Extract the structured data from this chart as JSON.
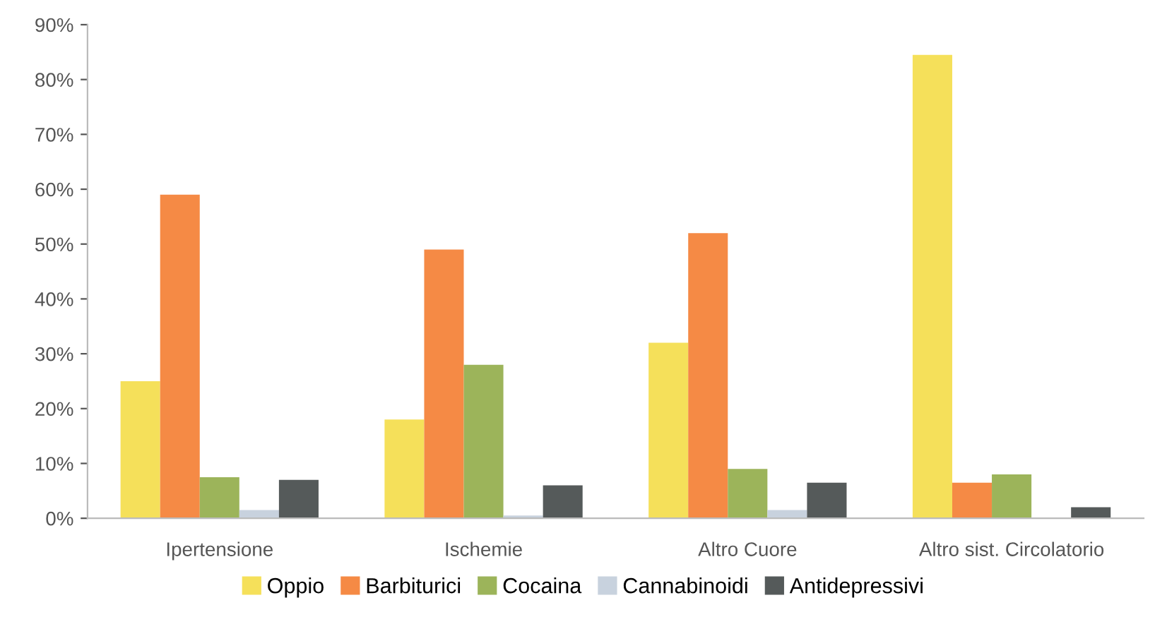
{
  "chart_data": {
    "type": "bar",
    "categories": [
      "Ipertensione",
      "Ischemie",
      "Altro Cuore",
      "Altro sist. Circolatorio"
    ],
    "series": [
      {
        "name": "Oppio",
        "color": "#f5e05a",
        "values": [
          25,
          18,
          32,
          84.5
        ]
      },
      {
        "name": "Barbiturici",
        "color": "#f58a45",
        "values": [
          59,
          49,
          52,
          6.5
        ]
      },
      {
        "name": "Cocaina",
        "color": "#9cb45a",
        "values": [
          7.5,
          28,
          9,
          8
        ]
      },
      {
        "name": "Cannabinoidi",
        "color": "#c8d2de",
        "values": [
          1.5,
          0.5,
          1.5,
          0
        ]
      },
      {
        "name": "Antidepressivi",
        "color": "#555a5a",
        "values": [
          7,
          6,
          6.5,
          2
        ]
      }
    ],
    "ylim": [
      0,
      90
    ],
    "yticks": [
      {
        "value": 0,
        "label": "0%"
      },
      {
        "value": 10,
        "label": "10%"
      },
      {
        "value": 20,
        "label": "20%"
      },
      {
        "value": 30,
        "label": "30%"
      },
      {
        "value": 40,
        "label": "40%"
      },
      {
        "value": 50,
        "label": "50%"
      },
      {
        "value": 60,
        "label": "60%"
      },
      {
        "value": 70,
        "label": "70%"
      },
      {
        "value": 80,
        "label": "80%"
      },
      {
        "value": 90,
        "label": "90%"
      }
    ],
    "grid": false,
    "legend": "bottom"
  }
}
